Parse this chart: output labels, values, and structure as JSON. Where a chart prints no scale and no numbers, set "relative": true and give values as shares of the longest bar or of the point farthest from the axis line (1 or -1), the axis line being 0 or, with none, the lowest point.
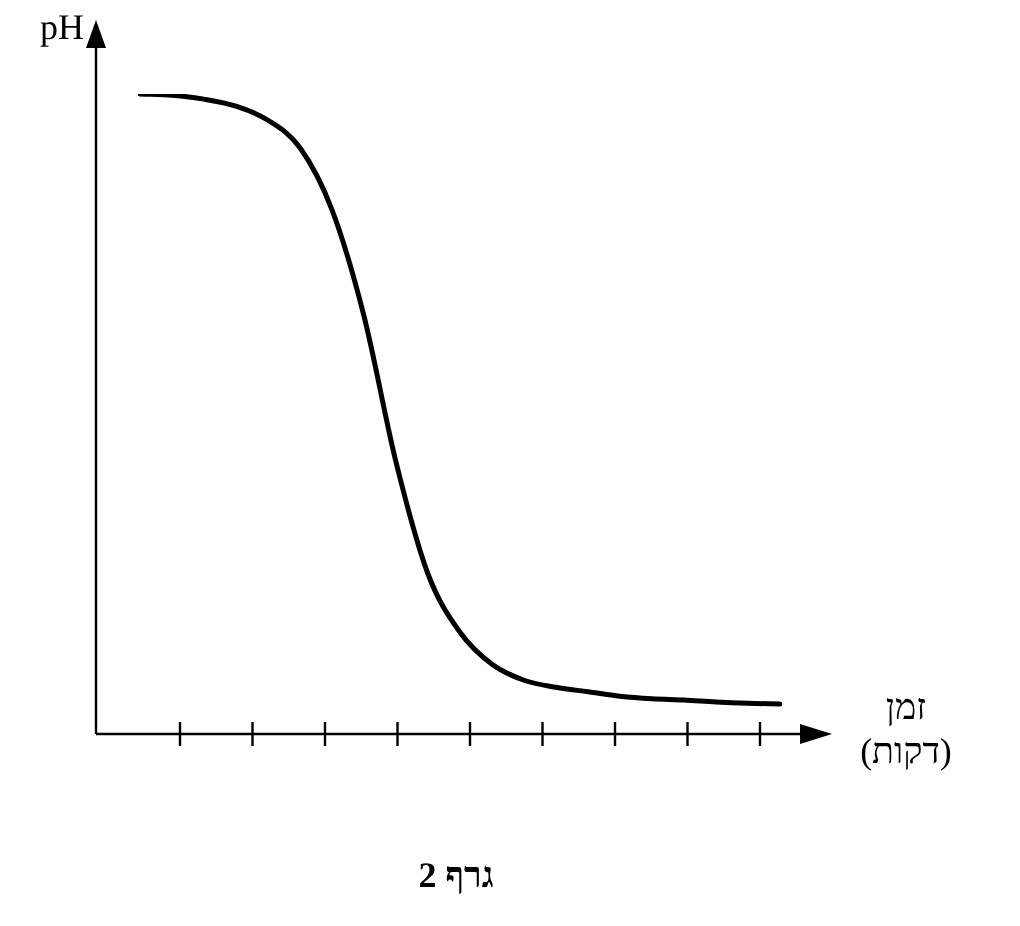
{
  "chart_data": {
    "type": "line",
    "title": "גרף 2",
    "xlabel": "זמן (דקות)",
    "ylabel": "pH",
    "relative": true,
    "marker": "none",
    "line_style": "solid",
    "legend": false,
    "categories": [
      null,
      null,
      null,
      null,
      null,
      null,
      null,
      null,
      null,
      null,
      null,
      null,
      null,
      null,
      null,
      null,
      null,
      null,
      null,
      null,
      null
    ],
    "series": [
      {
        "color": "#000000",
        "values": [
          1,
          0.998,
          0.992,
          0.981,
          0.959,
          0.916,
          0.819,
          0.653,
          0.425,
          0.25,
          0.159,
          0.109,
          0.084,
          0.073,
          0.066,
          0.059,
          0.055,
          0.053,
          0.05,
          0.048,
          0.047
        ]
      }
    ]
  }
}
